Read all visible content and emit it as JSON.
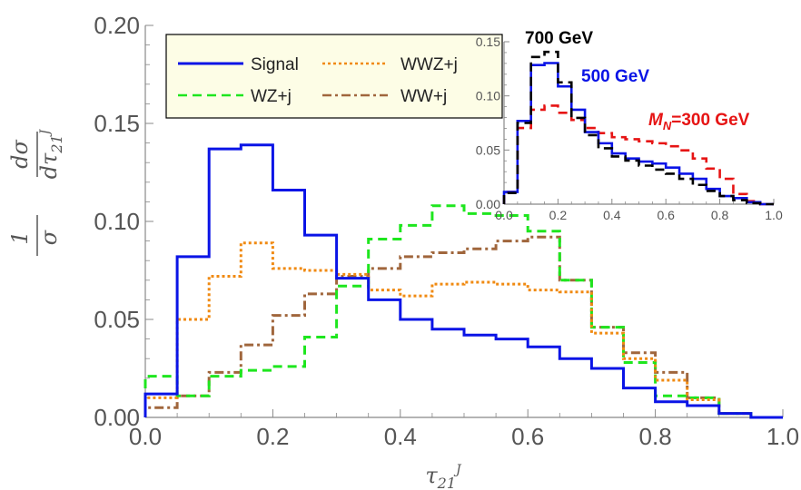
{
  "chart_data": {
    "type": "line",
    "subtype": "step-histogram",
    "xlabel": "τ21J",
    "ylabel": "1/σ dσ/dτ21J",
    "xlim": [
      0.0,
      1.0
    ],
    "ylim": [
      0.0,
      0.2
    ],
    "xticks": [
      "0.0",
      "0.2",
      "0.4",
      "0.6",
      "0.8",
      "1.0"
    ],
    "yticks": [
      "0.00",
      "0.05",
      "0.10",
      "0.15",
      "0.20"
    ],
    "bin_edges": [
      0.0,
      0.05,
      0.1,
      0.15,
      0.2,
      0.25,
      0.3,
      0.35,
      0.4,
      0.45,
      0.5,
      0.55,
      0.6,
      0.65,
      0.7,
      0.75,
      0.8,
      0.85,
      0.9,
      0.95,
      1.0
    ],
    "legend_position": "top-left",
    "series": [
      {
        "name": "Signal",
        "color": "#0a14e6",
        "dash": "solid",
        "values": [
          0.012,
          0.082,
          0.137,
          0.139,
          0.116,
          0.093,
          0.071,
          0.06,
          0.05,
          0.045,
          0.042,
          0.04,
          0.036,
          0.03,
          0.025,
          0.015,
          0.008,
          0.006,
          0.002,
          0.0
        ]
      },
      {
        "name": "WWZ+j",
        "color": "#f08a12",
        "dash": "dotted",
        "values": [
          0.01,
          0.05,
          0.072,
          0.089,
          0.076,
          0.075,
          0.073,
          0.065,
          0.062,
          0.068,
          0.069,
          0.068,
          0.065,
          0.064,
          0.043,
          0.03,
          0.019,
          0.009,
          0.002,
          0.0
        ]
      },
      {
        "name": "WZ+j",
        "color": "#1ee61e",
        "dash": "dashed",
        "values": [
          0.021,
          0.011,
          0.021,
          0.024,
          0.026,
          0.041,
          0.067,
          0.091,
          0.098,
          0.108,
          0.104,
          0.103,
          0.095,
          0.07,
          0.046,
          0.028,
          0.011,
          0.01,
          0.002,
          0.0
        ]
      },
      {
        "name": "WW+j",
        "color": "#a0663c",
        "dash": "dashdot",
        "values": [
          0.005,
          0.011,
          0.023,
          0.037,
          0.052,
          0.063,
          0.072,
          0.076,
          0.082,
          0.084,
          0.086,
          0.09,
          0.092,
          0.07,
          0.046,
          0.033,
          0.023,
          0.01,
          0.002,
          0.0
        ]
      }
    ],
    "inset": {
      "type": "line",
      "subtype": "step-histogram",
      "xlim": [
        0.0,
        1.0
      ],
      "ylim": [
        0.0,
        0.16
      ],
      "xticks": [
        "0.0",
        "0.2",
        "0.4",
        "0.6",
        "0.8",
        "1.0"
      ],
      "yticks": [
        "0.00",
        "0.05",
        "0.10",
        "0.15"
      ],
      "bin_edges": [
        0.0,
        0.05,
        0.1,
        0.15,
        0.2,
        0.25,
        0.3,
        0.35,
        0.4,
        0.45,
        0.5,
        0.55,
        0.6,
        0.65,
        0.7,
        0.75,
        0.8,
        0.85,
        0.9,
        0.95,
        1.0
      ],
      "series": [
        {
          "name": "700 GeV",
          "color": "#000000",
          "dash": "dashed",
          "values": [
            0.011,
            0.08,
            0.145,
            0.15,
            0.12,
            0.085,
            0.068,
            0.055,
            0.047,
            0.043,
            0.038,
            0.034,
            0.03,
            0.025,
            0.019,
            0.013,
            0.008,
            0.004,
            0.001,
            0.0
          ]
        },
        {
          "name": "500 GeV",
          "color": "#0a14e6",
          "dash": "solid",
          "values": [
            0.012,
            0.082,
            0.137,
            0.139,
            0.116,
            0.093,
            0.071,
            0.06,
            0.05,
            0.045,
            0.042,
            0.04,
            0.036,
            0.03,
            0.025,
            0.015,
            0.008,
            0.006,
            0.002,
            0.0
          ]
        },
        {
          "name": "M_N=300 GeV",
          "color": "#e61414",
          "dash": "dashed",
          "values": [
            0.012,
            0.075,
            0.093,
            0.097,
            0.09,
            0.083,
            0.075,
            0.07,
            0.066,
            0.064,
            0.062,
            0.06,
            0.057,
            0.053,
            0.045,
            0.035,
            0.025,
            0.01,
            0.003,
            0.0
          ]
        }
      ],
      "annotations": [
        {
          "text": "700 GeV",
          "color": "#000000"
        },
        {
          "text": "500 GeV",
          "color": "#0a14e6"
        },
        {
          "text": "=300 GeV",
          "prefix": "M",
          "sub": "N",
          "color": "#e61414"
        }
      ]
    }
  }
}
